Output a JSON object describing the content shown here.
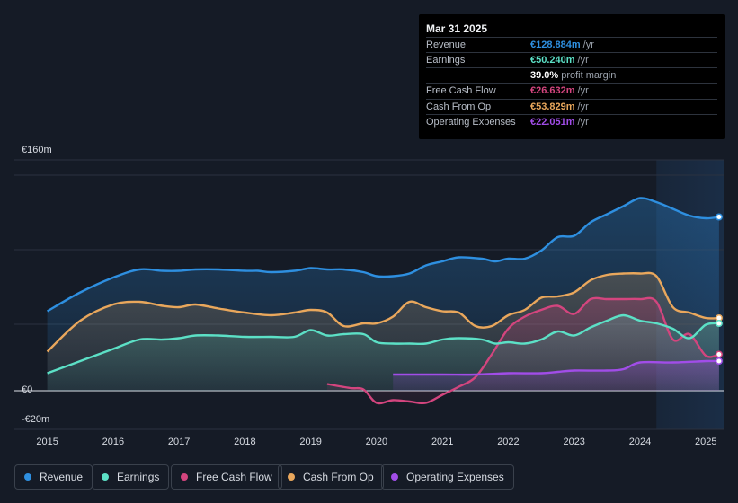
{
  "tooltip": {
    "date": "Mar 31 2025",
    "rows": [
      {
        "label": "Revenue",
        "value": "€128.884m",
        "unit": "/yr",
        "color": "#2e8fe0"
      },
      {
        "label": "Earnings",
        "value": "€50.240m",
        "unit": "/yr",
        "color": "#5ce0c6"
      },
      {
        "label": "",
        "value": "39.0%",
        "unit": "profit margin",
        "color": "#ffffff"
      },
      {
        "label": "Free Cash Flow",
        "value": "€26.632m",
        "unit": "/yr",
        "color": "#d3457e"
      },
      {
        "label": "Cash From Op",
        "value": "€53.829m",
        "unit": "/yr",
        "color": "#e9a75c"
      },
      {
        "label": "Operating Expenses",
        "value": "€22.051m",
        "unit": "/yr",
        "color": "#a14de8"
      }
    ]
  },
  "legend": [
    {
      "label": "Revenue",
      "color": "#2e8fe0"
    },
    {
      "label": "Earnings",
      "color": "#5ce0c6"
    },
    {
      "label": "Free Cash Flow",
      "color": "#d3457e"
    },
    {
      "label": "Cash From Op",
      "color": "#e9a75c"
    },
    {
      "label": "Operating Expenses",
      "color": "#a14de8"
    }
  ],
  "chart_data": {
    "type": "area",
    "title": "",
    "xlabel": "",
    "ylabel": "",
    "ylim": [
      -20,
      160
    ],
    "y_tick_labels": [
      {
        "value": 160,
        "label": "€160m"
      },
      {
        "value": 0,
        "label": "€0"
      },
      {
        "value": -20,
        "label": "-€20m"
      }
    ],
    "x_tick_labels": [
      "2015",
      "2016",
      "2017",
      "2018",
      "2019",
      "2020",
      "2021",
      "2022",
      "2023",
      "2024",
      "2025"
    ],
    "xlim": [
      2014.5,
      2025.27
    ],
    "forecast_start": 2024.25,
    "series": [
      {
        "name": "Revenue",
        "color": "#2e8fe0",
        "points": [
          [
            2015,
            59
          ],
          [
            2015.5,
            73
          ],
          [
            2016,
            84
          ],
          [
            2016.4,
            90
          ],
          [
            2016.75,
            89
          ],
          [
            2017,
            89
          ],
          [
            2017.25,
            90
          ],
          [
            2017.6,
            90
          ],
          [
            2018,
            89
          ],
          [
            2018.2,
            89
          ],
          [
            2018.4,
            88
          ],
          [
            2018.75,
            89
          ],
          [
            2019,
            91
          ],
          [
            2019.25,
            90
          ],
          [
            2019.5,
            90
          ],
          [
            2019.8,
            88
          ],
          [
            2020,
            85
          ],
          [
            2020.25,
            85
          ],
          [
            2020.5,
            87
          ],
          [
            2020.75,
            93
          ],
          [
            2021,
            96
          ],
          [
            2021.25,
            99
          ],
          [
            2021.6,
            98
          ],
          [
            2021.8,
            96
          ],
          [
            2022,
            98
          ],
          [
            2022.25,
            98
          ],
          [
            2022.5,
            104
          ],
          [
            2022.75,
            114
          ],
          [
            2023,
            115
          ],
          [
            2023.25,
            125
          ],
          [
            2023.5,
            131
          ],
          [
            2023.75,
            137
          ],
          [
            2024,
            143
          ],
          [
            2024.25,
            140
          ],
          [
            2024.5,
            135
          ],
          [
            2024.75,
            130
          ],
          [
            2025,
            128
          ],
          [
            2025.2,
            129
          ]
        ]
      },
      {
        "name": "Earnings",
        "color": "#5ce0c6",
        "points": [
          [
            2015,
            13
          ],
          [
            2015.5,
            22
          ],
          [
            2016,
            31
          ],
          [
            2016.4,
            38
          ],
          [
            2016.75,
            38
          ],
          [
            2017,
            39
          ],
          [
            2017.25,
            41
          ],
          [
            2017.6,
            41
          ],
          [
            2018,
            40
          ],
          [
            2018.4,
            40
          ],
          [
            2018.75,
            40
          ],
          [
            2019,
            45
          ],
          [
            2019.25,
            41
          ],
          [
            2019.5,
            42
          ],
          [
            2019.8,
            42
          ],
          [
            2020,
            36
          ],
          [
            2020.25,
            35
          ],
          [
            2020.5,
            35
          ],
          [
            2020.75,
            35
          ],
          [
            2021,
            38
          ],
          [
            2021.25,
            39
          ],
          [
            2021.6,
            38
          ],
          [
            2021.8,
            35
          ],
          [
            2022,
            36
          ],
          [
            2022.25,
            35
          ],
          [
            2022.5,
            38
          ],
          [
            2022.75,
            44
          ],
          [
            2023,
            41
          ],
          [
            2023.25,
            47
          ],
          [
            2023.5,
            52
          ],
          [
            2023.75,
            56
          ],
          [
            2024,
            52
          ],
          [
            2024.25,
            50
          ],
          [
            2024.5,
            46
          ],
          [
            2024.75,
            39
          ],
          [
            2025,
            49
          ],
          [
            2025.2,
            50
          ]
        ]
      },
      {
        "name": "Free Cash Flow",
        "color": "#d3457e",
        "points": [
          [
            2019.25,
            5
          ],
          [
            2019.6,
            2
          ],
          [
            2019.8,
            1
          ],
          [
            2020,
            -9
          ],
          [
            2020.25,
            -7
          ],
          [
            2020.5,
            -8
          ],
          [
            2020.75,
            -9
          ],
          [
            2021,
            -3
          ],
          [
            2021.25,
            3
          ],
          [
            2021.5,
            10
          ],
          [
            2021.75,
            27
          ],
          [
            2022,
            46
          ],
          [
            2022.25,
            55
          ],
          [
            2022.5,
            60
          ],
          [
            2022.75,
            63
          ],
          [
            2023,
            57
          ],
          [
            2023.25,
            68
          ],
          [
            2023.5,
            68
          ],
          [
            2023.75,
            68
          ],
          [
            2024,
            68
          ],
          [
            2024.25,
            66
          ],
          [
            2024.5,
            38
          ],
          [
            2024.75,
            42
          ],
          [
            2025,
            26
          ],
          [
            2025.2,
            27
          ]
        ]
      },
      {
        "name": "Cash From Op",
        "color": "#e9a75c",
        "points": [
          [
            2015,
            29
          ],
          [
            2015.5,
            52
          ],
          [
            2016,
            64
          ],
          [
            2016.4,
            66
          ],
          [
            2016.75,
            63
          ],
          [
            2017,
            62
          ],
          [
            2017.25,
            64
          ],
          [
            2017.6,
            61
          ],
          [
            2018,
            58
          ],
          [
            2018.4,
            56
          ],
          [
            2018.75,
            58
          ],
          [
            2019,
            60
          ],
          [
            2019.25,
            58
          ],
          [
            2019.5,
            48
          ],
          [
            2019.8,
            50
          ],
          [
            2020,
            50
          ],
          [
            2020.25,
            55
          ],
          [
            2020.5,
            66
          ],
          [
            2020.75,
            62
          ],
          [
            2021,
            59
          ],
          [
            2021.25,
            58
          ],
          [
            2021.5,
            48
          ],
          [
            2021.75,
            48
          ],
          [
            2022,
            56
          ],
          [
            2022.25,
            60
          ],
          [
            2022.5,
            69
          ],
          [
            2022.75,
            70
          ],
          [
            2023,
            73
          ],
          [
            2023.25,
            82
          ],
          [
            2023.5,
            86
          ],
          [
            2023.75,
            87
          ],
          [
            2024,
            87
          ],
          [
            2024.25,
            85
          ],
          [
            2024.5,
            62
          ],
          [
            2024.75,
            58
          ],
          [
            2025,
            54
          ],
          [
            2025.2,
            54
          ]
        ]
      },
      {
        "name": "Operating Expenses",
        "color": "#a14de8",
        "points": [
          [
            2020.25,
            12
          ],
          [
            2021,
            12
          ],
          [
            2021.5,
            12
          ],
          [
            2022,
            13
          ],
          [
            2022.5,
            13
          ],
          [
            2022.75,
            14
          ],
          [
            2023,
            15
          ],
          [
            2023.5,
            15
          ],
          [
            2023.75,
            16
          ],
          [
            2024,
            21
          ],
          [
            2024.5,
            21
          ],
          [
            2025,
            22
          ],
          [
            2025.2,
            22
          ]
        ]
      }
    ]
  }
}
